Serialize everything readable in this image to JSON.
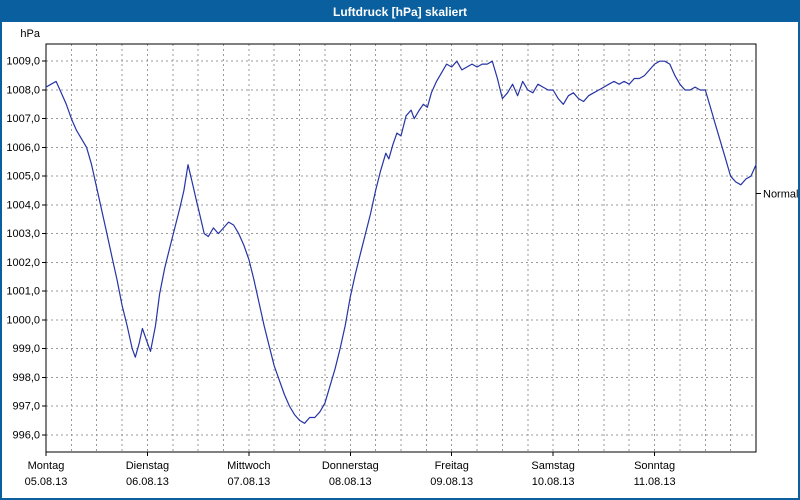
{
  "window": {
    "title": "Luftdruck [hPa] skaliert"
  },
  "colors": {
    "title_bar_bg": "#0a5f9e",
    "window_border": "#0a5f9e",
    "line": "#2634a5",
    "grid": "#9a9a9a",
    "axis": "#000000"
  },
  "chart_data": {
    "type": "line",
    "title": "Luftdruck [hPa] skaliert",
    "ylabel": "hPa",
    "legend": "none",
    "grid": true,
    "xlim": [
      0,
      7
    ],
    "ylim": [
      995.4,
      1009.6
    ],
    "grid_x_step_days": 0.25,
    "y_ticks": [
      996,
      997,
      998,
      999,
      1000,
      1001,
      1002,
      1003,
      1004,
      1005,
      1006,
      1007,
      1008,
      1009
    ],
    "y_tick_labels": [
      "996,0",
      "997,0",
      "998,0",
      "999,0",
      "1000,0",
      "1001,0",
      "1002,0",
      "1003,0",
      "1004,0",
      "1005,0",
      "1006,0",
      "1007,0",
      "1008,0",
      "1009,0"
    ],
    "x_ticks": [
      {
        "x": 0,
        "day": "Montag",
        "date": "05.08.13"
      },
      {
        "x": 1,
        "day": "Dienstag",
        "date": "06.08.13"
      },
      {
        "x": 2,
        "day": "Mittwoch",
        "date": "07.08.13"
      },
      {
        "x": 3,
        "day": "Donnerstag",
        "date": "08.08.13"
      },
      {
        "x": 4,
        "day": "Freitag",
        "date": "09.08.13"
      },
      {
        "x": 5,
        "day": "Samstag",
        "date": "10.08.13"
      },
      {
        "x": 6,
        "day": "Sonntag",
        "date": "11.08.13"
      }
    ],
    "normal": {
      "label": "Normal",
      "value": 1004.4
    },
    "series": [
      {
        "name": "Luftdruck",
        "x": [
          0,
          0.05,
          0.1,
          0.15,
          0.2,
          0.25,
          0.3,
          0.35,
          0.4,
          0.45,
          0.5,
          0.55,
          0.6,
          0.65,
          0.7,
          0.75,
          0.8,
          0.85,
          0.88,
          0.92,
          0.95,
          1.0,
          1.03,
          1.08,
          1.12,
          1.17,
          1.22,
          1.27,
          1.32,
          1.36,
          1.4,
          1.44,
          1.48,
          1.52,
          1.56,
          1.6,
          1.65,
          1.7,
          1.75,
          1.8,
          1.85,
          1.9,
          1.95,
          2.0,
          2.05,
          2.1,
          2.15,
          2.2,
          2.25,
          2.3,
          2.35,
          2.4,
          2.45,
          2.5,
          2.55,
          2.6,
          2.65,
          2.7,
          2.75,
          2.8,
          2.85,
          2.9,
          2.95,
          3.0,
          3.05,
          3.1,
          3.15,
          3.2,
          3.25,
          3.3,
          3.35,
          3.38,
          3.42,
          3.46,
          3.5,
          3.55,
          3.6,
          3.63,
          3.68,
          3.72,
          3.76,
          3.8,
          3.85,
          3.9,
          3.95,
          4.0,
          4.05,
          4.1,
          4.15,
          4.2,
          4.25,
          4.3,
          4.35,
          4.4,
          4.45,
          4.5,
          4.55,
          4.6,
          4.65,
          4.7,
          4.75,
          4.8,
          4.85,
          4.9,
          4.95,
          5.0,
          5.05,
          5.1,
          5.15,
          5.2,
          5.25,
          5.3,
          5.35,
          5.4,
          5.45,
          5.5,
          5.55,
          5.6,
          5.65,
          5.7,
          5.75,
          5.8,
          5.85,
          5.9,
          5.95,
          6.0,
          6.05,
          6.1,
          6.15,
          6.2,
          6.25,
          6.3,
          6.35,
          6.4,
          6.45,
          6.5,
          6.55,
          6.6,
          6.65,
          6.7,
          6.75,
          6.8,
          6.85,
          6.9,
          6.95,
          7.0
        ],
        "values": [
          1008.1,
          1008.2,
          1008.3,
          1007.9,
          1007.5,
          1007.0,
          1006.6,
          1006.3,
          1006.0,
          1005.4,
          1004.6,
          1003.8,
          1003.0,
          1002.2,
          1001.4,
          1000.5,
          999.8,
          999.0,
          998.7,
          999.2,
          999.7,
          999.2,
          998.9,
          999.8,
          1000.9,
          1001.8,
          1002.5,
          1003.2,
          1003.9,
          1004.5,
          1005.4,
          1004.8,
          1004.2,
          1003.6,
          1003.0,
          1002.9,
          1003.2,
          1003.0,
          1003.2,
          1003.4,
          1003.3,
          1003.0,
          1002.6,
          1002.1,
          1001.4,
          1000.6,
          999.8,
          999.1,
          998.4,
          997.9,
          997.4,
          997.0,
          996.7,
          996.5,
          996.4,
          996.6,
          996.6,
          996.8,
          997.1,
          997.7,
          998.3,
          999.0,
          999.8,
          1000.8,
          1001.6,
          1002.3,
          1003.0,
          1003.7,
          1004.5,
          1005.2,
          1005.8,
          1005.6,
          1006.1,
          1006.5,
          1006.4,
          1007.1,
          1007.3,
          1007.0,
          1007.3,
          1007.5,
          1007.4,
          1007.9,
          1008.3,
          1008.6,
          1008.9,
          1008.8,
          1009.0,
          1008.7,
          1008.8,
          1008.9,
          1008.8,
          1008.9,
          1008.9,
          1009.0,
          1008.4,
          1007.7,
          1007.9,
          1008.2,
          1007.8,
          1008.3,
          1008.0,
          1007.9,
          1008.2,
          1008.1,
          1008.0,
          1008.0,
          1007.7,
          1007.5,
          1007.8,
          1007.9,
          1007.7,
          1007.6,
          1007.8,
          1007.9,
          1008.0,
          1008.1,
          1008.2,
          1008.3,
          1008.2,
          1008.3,
          1008.2,
          1008.4,
          1008.4,
          1008.5,
          1008.7,
          1008.9,
          1009.0,
          1009.0,
          1008.9,
          1008.5,
          1008.2,
          1008.0,
          1008.0,
          1008.1,
          1008.0,
          1008.0,
          1007.4,
          1006.8,
          1006.2,
          1005.6,
          1005.0,
          1004.8,
          1004.7,
          1004.9,
          1005.0,
          1005.4
        ]
      }
    ]
  }
}
